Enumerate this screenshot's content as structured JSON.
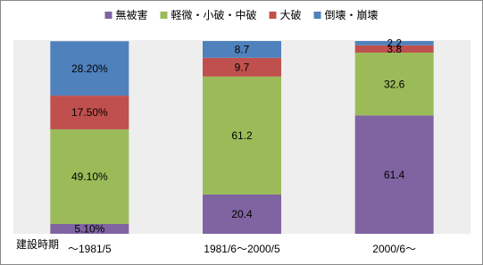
{
  "chart_data": {
    "type": "stacked-bar",
    "x_label": "建設時期",
    "categories": [
      "～1981/5",
      "1981/6～2000/5",
      "2000/6～"
    ],
    "series": [
      {
        "name": "無被害",
        "color": "#8064a2",
        "values": [
          5.1,
          20.4,
          61.4
        ],
        "value_labels": [
          "5.10%",
          "20.4",
          "61.4"
        ]
      },
      {
        "name": "軽微・小破・中破",
        "color": "#9bbb59",
        "values": [
          49.1,
          61.2,
          32.6
        ],
        "value_labels": [
          "49.10%",
          "61.2",
          "32.6"
        ]
      },
      {
        "name": "大破",
        "color": "#c0504d",
        "values": [
          17.5,
          9.7,
          3.8
        ],
        "value_labels": [
          "17.50%",
          "9.7",
          "3.8"
        ]
      },
      {
        "name": "倒壊・崩壊",
        "color": "#4f81bd",
        "values": [
          28.2,
          8.7,
          2.2
        ],
        "value_labels": [
          "28.20%",
          "8.7",
          "2.2"
        ]
      }
    ],
    "legend": "top"
  }
}
